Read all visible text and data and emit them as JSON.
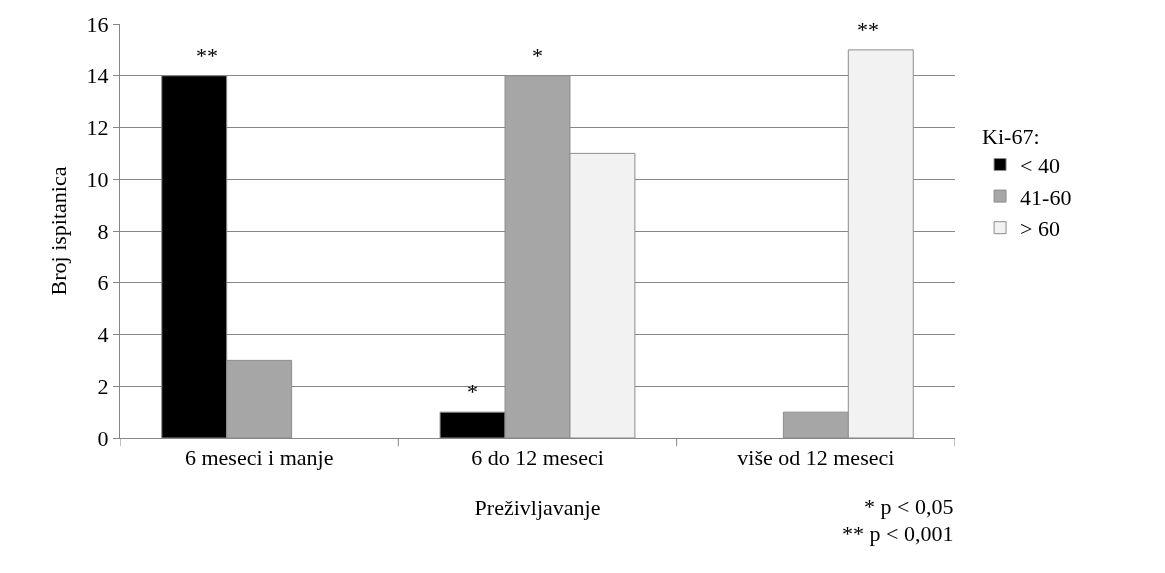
{
  "chart_data": {
    "type": "bar",
    "xlabel": "Preživljavanje",
    "ylabel": "Broj ispitanica",
    "legend_title": "Ki-67:",
    "categories": [
      "6 meseci i manje",
      "6 do 12 meseci",
      "više od 12 meseci"
    ],
    "series": [
      {
        "name": "< 40",
        "color": "#000000",
        "values": [
          14,
          1,
          null
        ]
      },
      {
        "name": "41-60",
        "color": "#a6a6a6",
        "values": [
          3,
          14,
          1
        ]
      },
      {
        "name": "> 60",
        "color": "#f2f2f2",
        "values": [
          null,
          11,
          15
        ]
      }
    ],
    "ylim": [
      0,
      16
    ],
    "yticks": [
      0,
      2,
      4,
      6,
      8,
      10,
      12,
      14,
      16
    ],
    "grid": "y",
    "legend": "right",
    "annotations": [
      "**",
      "*",
      {
        "text": "*",
        "x": "6 do 12 meseci",
        "y": 14
      },
      "**",
      "* p < 0,05",
      "** p < 0,001"
    ]
  }
}
